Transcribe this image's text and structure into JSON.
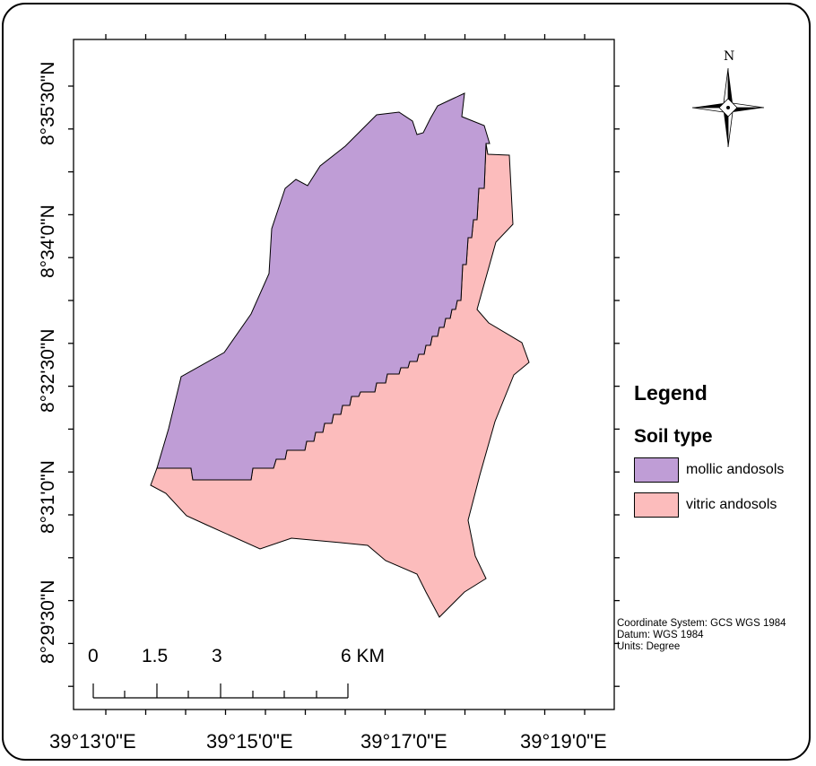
{
  "map": {
    "latitude_labels": [
      "8°35'30\"N",
      "8°34'0\"N",
      "8°32'30\"N",
      "8°31'0\"N",
      "8°29'30\"N"
    ],
    "longitude_labels": [
      "39°13'0\"E",
      "39°15'0\"E",
      "39°17'0\"E",
      "39°19'0\"E"
    ],
    "scale_bar": {
      "labels": [
        "0",
        "1.5",
        "3",
        "6 KM"
      ]
    },
    "north_arrow": {
      "label": "N",
      "icon": "compass-rose-icon"
    },
    "legend": {
      "title": "Legend",
      "subtitle": "Soil type",
      "items": [
        {
          "label": "mollic andosols",
          "color": "#bf9dd6"
        },
        {
          "label": "vitric andosols",
          "color": "#fcbcbc"
        }
      ]
    },
    "coordinate_info": [
      "Coordinate System: GCS WGS 1984",
      "Datum: WGS 1984",
      "Units: Degree"
    ]
  }
}
